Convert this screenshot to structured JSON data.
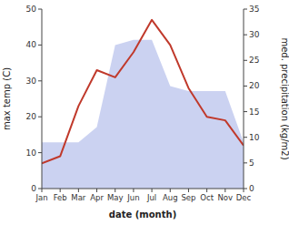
{
  "chart_data": {
    "type": "line",
    "xlabel": "date (month)",
    "ylabel": "max temp (C)",
    "y2label": "med. precipitation (kg/m2)",
    "categories": [
      "Jan",
      "Feb",
      "Mar",
      "Apr",
      "May",
      "Jun",
      "Jul",
      "Aug",
      "Sep",
      "Oct",
      "Nov",
      "Dec"
    ],
    "series": [
      {
        "type": "area",
        "axis": "y2",
        "color": "#c5cdf0",
        "values": [
          9,
          9,
          9,
          12,
          28,
          29,
          29,
          20,
          19,
          19,
          19,
          9
        ]
      },
      {
        "type": "line",
        "color": "#c0392b",
        "values": [
          7,
          9,
          23,
          33,
          31,
          38,
          47,
          40,
          28,
          20,
          19,
          12
        ]
      }
    ],
    "ylim": [
      0,
      50
    ],
    "yticks": [
      0,
      10,
      20,
      30,
      40,
      50
    ],
    "y2lim": [
      0,
      35
    ],
    "y2ticks": [
      0,
      5,
      10,
      15,
      20,
      25,
      30,
      35
    ],
    "grid": false
  }
}
